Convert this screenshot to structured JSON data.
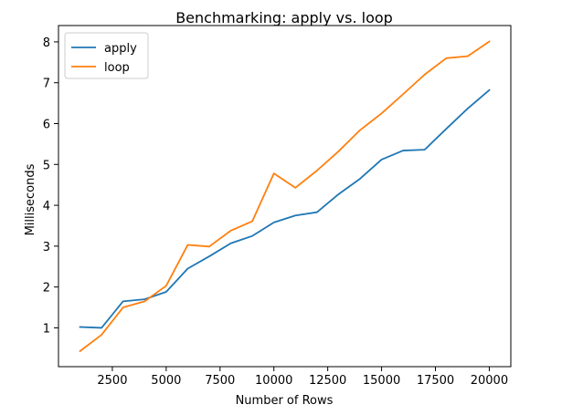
{
  "chart_data": {
    "type": "line",
    "title": "Benchmarking: apply vs. loop",
    "xlabel": "Number of Rows",
    "ylabel": "Milliseconds",
    "xlim": [
      0,
      21000
    ],
    "ylim": [
      0.05,
      8.4
    ],
    "xticks": [
      2500,
      5000,
      7500,
      10000,
      12500,
      15000,
      17500,
      20000
    ],
    "xtick_labels": [
      "2500",
      "5000",
      "7500",
      "10000",
      "12500",
      "15000",
      "17500",
      "20000"
    ],
    "yticks": [
      1,
      2,
      3,
      4,
      5,
      6,
      7,
      8
    ],
    "ytick_labels": [
      "1",
      "2",
      "3",
      "4",
      "5",
      "6",
      "7",
      "8"
    ],
    "grid": false,
    "legend_position": "top-left",
    "x": [
      1000,
      2000,
      3000,
      4000,
      5000,
      6000,
      7000,
      8000,
      9000,
      10000,
      11000,
      12000,
      13000,
      14000,
      15000,
      16000,
      17000,
      18000,
      19000,
      20000
    ],
    "series": [
      {
        "name": "apply",
        "color": "#1f77b4",
        "values": [
          1.02,
          1.0,
          1.65,
          1.7,
          1.88,
          2.45,
          2.75,
          3.07,
          3.25,
          3.58,
          3.75,
          3.83,
          4.27,
          4.65,
          5.12,
          5.34,
          5.36,
          5.87,
          6.37,
          6.82
        ]
      },
      {
        "name": "loop",
        "color": "#ff7f0e",
        "values": [
          0.43,
          0.83,
          1.5,
          1.65,
          2.03,
          3.03,
          2.99,
          3.38,
          3.61,
          4.78,
          4.43,
          4.85,
          5.32,
          5.84,
          6.25,
          6.72,
          7.2,
          7.6,
          7.65,
          8.01
        ]
      }
    ]
  }
}
